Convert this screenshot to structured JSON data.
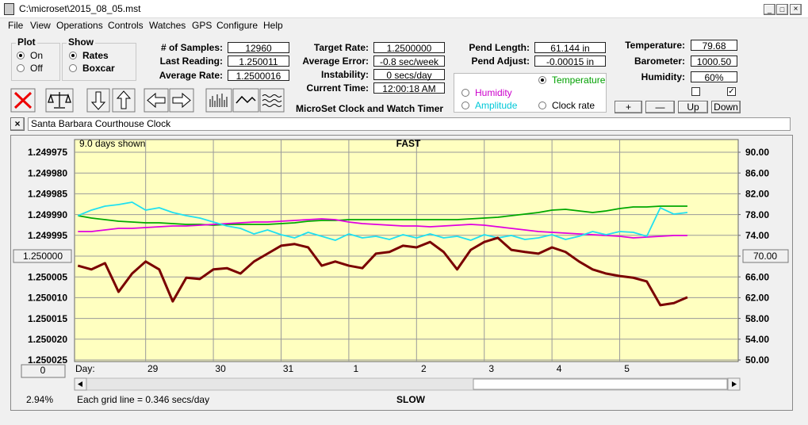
{
  "window": {
    "title": "C:\\microset\\2015_08_05.mst"
  },
  "menu": [
    "File",
    "View",
    "Operations",
    "Controls",
    "Watches",
    "GPS",
    "Configure",
    "Help"
  ],
  "plot_group": {
    "title": "Plot",
    "options": [
      "On",
      "Off"
    ]
  },
  "show_group": {
    "title": "Show",
    "options": [
      "Rates",
      "Boxcar"
    ]
  },
  "fields": [
    {
      "label": "# of Samples:",
      "value": "12960"
    },
    {
      "label": "Last Reading:",
      "value": "1.250011"
    },
    {
      "label": "Average Rate:",
      "value": "1.2500016"
    },
    {
      "label": "Target Rate:",
      "value": "1.2500000"
    },
    {
      "label": "Average Error:",
      "value": "-0.8 sec/week"
    },
    {
      "label": "Instability:",
      "value": "0 secs/day"
    },
    {
      "label": "Current Time:",
      "value": "12:00:18 AM"
    },
    {
      "label": "Pend Length:",
      "value": "61.144 in"
    },
    {
      "label": "Pend Adjust:",
      "value": "-0.00015 in"
    },
    {
      "label": "Temperature:",
      "value": "79.68"
    },
    {
      "label": "Barometer:",
      "value": "1000.50"
    },
    {
      "label": "Humidity:",
      "value": "60%"
    }
  ],
  "app_title": "MicroSet Clock and Watch Timer",
  "adjust_buttons": [
    "+",
    "—",
    "Up",
    "Down"
  ],
  "clock_name": "Santa Barbara Courthouse Clock",
  "panel": {
    "zoom": "2.94%",
    "offset": "0"
  },
  "chart_data": {
    "type": "line",
    "top_label": "FAST",
    "bottom_label": "SLOW",
    "days_shown": "9.0 days shown",
    "x_label": "Day:",
    "grid_note": "Each grid line = 0.346 secs/day",
    "grid": true,
    "x": [
      -1,
      -0.8,
      -0.6,
      -0.4,
      -0.2,
      0,
      0.2,
      0.4,
      0.6,
      0.8,
      1,
      1.2,
      1.4,
      1.6,
      1.8,
      2,
      2.2,
      2.4,
      2.6,
      2.8,
      3,
      3.2,
      3.4,
      3.6,
      3.8,
      4,
      4.2,
      4.4,
      4.6,
      4.8,
      5,
      5.2,
      5.4,
      5.6,
      5.8,
      6,
      6.2,
      6.4,
      6.6,
      6.8,
      7,
      7.2,
      7.4,
      7.6,
      7.8,
      8
    ],
    "xlim": [
      -1.05,
      8.75
    ],
    "xticks": [
      {
        "value": 0,
        "label": "29"
      },
      {
        "value": 1,
        "label": "30"
      },
      {
        "value": 2,
        "label": "31"
      },
      {
        "value": 3,
        "label": "1"
      },
      {
        "value": 4,
        "label": "2"
      },
      {
        "value": 5,
        "label": "3"
      },
      {
        "value": 6,
        "label": "4"
      },
      {
        "value": 7,
        "label": "5"
      }
    ],
    "ylim": [
      1.249975,
      1.250025
    ],
    "y_inverted": true,
    "yticks": [
      1.249975,
      {
        "value": 1.24998,
        "label": "1.249980"
      },
      1.249985,
      {
        "value": 1.24999,
        "label": "1.249990"
      },
      1.249995,
      {
        "value": 1.25,
        "label": "1.250000"
      },
      1.250005,
      {
        "value": 1.25001,
        "label": "1.250010"
      },
      1.250015,
      {
        "value": 1.25002,
        "label": "1.250020"
      },
      1.250025
    ],
    "y2lim": [
      50,
      90
    ],
    "y2ticks": [
      {
        "value": 90,
        "label": "90.00"
      },
      {
        "value": 86,
        "label": "86.00"
      },
      {
        "value": 82,
        "label": "82.00"
      },
      {
        "value": 78,
        "label": "78.00"
      },
      {
        "value": 74,
        "label": "74.00"
      },
      {
        "value": 70,
        "label": "70.00"
      },
      {
        "value": 66,
        "label": "66.00"
      },
      {
        "value": 62,
        "label": "62.00"
      },
      {
        "value": 58,
        "label": "58.00"
      },
      {
        "value": 54,
        "label": "54.00"
      },
      {
        "value": 50,
        "label": "50.00"
      }
    ],
    "series": [
      {
        "name": "Temperature",
        "color": "#00a800",
        "axis": "y2",
        "values": [
          77.79,
          77.33,
          77.02,
          76.72,
          76.57,
          76.41,
          76.41,
          76.26,
          76.11,
          76.11,
          75.95,
          76.11,
          76.11,
          76.11,
          76.11,
          76.26,
          76.41,
          76.72,
          76.87,
          76.87,
          77.02,
          77.02,
          77.02,
          77.02,
          77.02,
          77.02,
          77.02,
          77.02,
          77.02,
          77.18,
          77.33,
          77.48,
          77.79,
          78.09,
          78.4,
          78.86,
          79.01,
          78.7,
          78.4,
          78.7,
          79.16,
          79.47,
          79.47,
          79.62,
          79.62,
          79.62
        ]
      },
      {
        "name": "Humidity",
        "color": "#e000e0",
        "axis": "y2",
        "values": [
          74.73,
          74.73,
          75.04,
          75.34,
          75.34,
          75.5,
          75.65,
          75.8,
          75.8,
          75.95,
          76.11,
          76.26,
          76.41,
          76.57,
          76.57,
          76.72,
          76.87,
          77.02,
          77.18,
          77.02,
          76.57,
          76.26,
          76.11,
          75.95,
          75.8,
          75.8,
          75.65,
          75.8,
          75.95,
          76.11,
          75.95,
          75.65,
          75.34,
          75.04,
          74.73,
          74.58,
          74.43,
          74.27,
          74.12,
          73.97,
          73.82,
          73.51,
          73.66,
          73.82,
          73.97,
          73.97
        ]
      },
      {
        "name": "Amplitude",
        "color": "#20e0f0",
        "axis": "y2",
        "values": [
          77.79,
          78.86,
          79.62,
          79.92,
          80.38,
          78.86,
          79.31,
          78.4,
          77.79,
          77.33,
          76.57,
          75.8,
          75.34,
          74.27,
          75.04,
          74.12,
          73.51,
          74.58,
          73.82,
          73.05,
          74.27,
          73.51,
          73.82,
          73.21,
          74.12,
          73.51,
          74.27,
          73.51,
          73.82,
          73.05,
          74.12,
          73.51,
          73.97,
          73.21,
          73.51,
          74.12,
          73.21,
          73.82,
          74.73,
          74.12,
          74.73,
          74.58,
          73.82,
          79.31,
          78.09,
          78.4
        ]
      },
      {
        "name": "Clock rate",
        "color": "#7a0000",
        "values": [
          1.2500023,
          1.2500032,
          1.2500017,
          1.2500086,
          1.2500042,
          1.2500013,
          1.2500032,
          1.2500109,
          1.2500052,
          1.2500055,
          1.2500032,
          1.2500029,
          1.2500042,
          1.2500013,
          1.2499994,
          1.2499975,
          1.2499971,
          1.2499979,
          1.2500023,
          1.2500013,
          1.2500023,
          1.2500029,
          1.2499994,
          1.249999,
          1.2499975,
          1.2499979,
          1.2499966,
          1.249999,
          1.2500032,
          1.2499985,
          1.2499966,
          1.2499956,
          1.2499985,
          1.249999,
          1.2499994,
          1.2499979,
          1.249999,
          1.2500013,
          1.2500032,
          1.2500042,
          1.2500048,
          1.2500052,
          1.2500061,
          1.2500118,
          1.2500113,
          1.2500099
        ]
      }
    ]
  }
}
